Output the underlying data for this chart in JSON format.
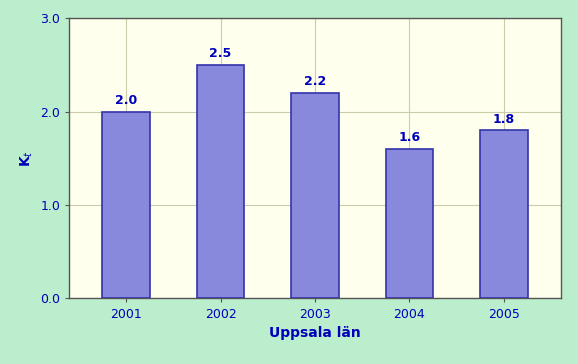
{
  "categories": [
    "2001",
    "2002",
    "2003",
    "2004",
    "2005"
  ],
  "values": [
    2.0,
    2.5,
    2.2,
    1.6,
    1.8
  ],
  "bar_color": "#8888dd",
  "bar_edgecolor": "#3333aa",
  "ylabel": "K$_t$",
  "xlabel": "Uppsala län",
  "ylim": [
    0.0,
    3.0
  ],
  "yticks": [
    0.0,
    1.0,
    2.0,
    3.0
  ],
  "plot_bg_color": "#ffffee",
  "outer_bg_color": "#bbeecc",
  "label_color": "#0000bb",
  "spine_color": "#555555",
  "grid_color": "#ccccaa",
  "value_label_fontsize": 9,
  "xlabel_fontsize": 10,
  "ylabel_fontsize": 10,
  "tick_fontsize": 9,
  "bar_width": 0.5
}
